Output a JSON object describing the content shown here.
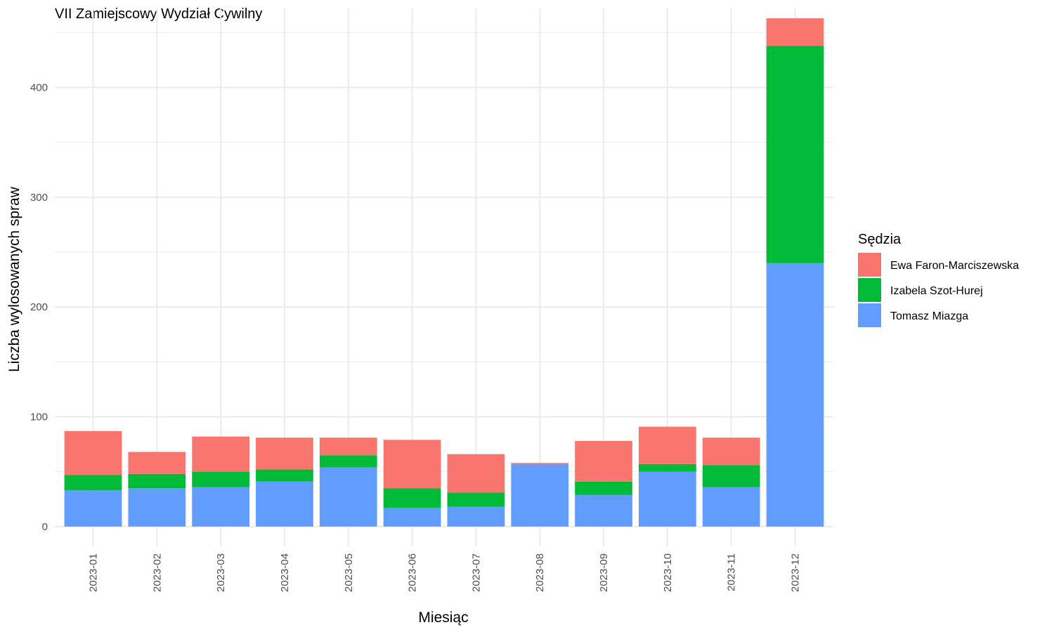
{
  "chart_data": {
    "type": "bar",
    "stacked": true,
    "title": "VII Zamiejscowy Wydział Cywilny",
    "xlabel": "Miesiąc",
    "ylabel": "Liczba wylosowanych spraw",
    "ylim": [
      -18,
      472
    ],
    "yticks": [
      0,
      100,
      200,
      300,
      400
    ],
    "categories": [
      "2023-01",
      "2023-02",
      "2023-03",
      "2023-04",
      "2023-05",
      "2023-06",
      "2023-07",
      "2023-08",
      "2023-09",
      "2023-10",
      "2023-11",
      "2023-12"
    ],
    "legend": {
      "title": "Sędzia",
      "position": "right"
    },
    "grid": true,
    "series": [
      {
        "name": "Tomasz Miazga",
        "color": "#619CFF",
        "values": [
          33,
          35,
          36,
          41,
          54,
          17,
          18,
          57,
          29,
          50,
          36,
          240
        ]
      },
      {
        "name": "Izabela Szot-Hurej",
        "color": "#00BA38",
        "values": [
          14,
          13,
          14,
          11,
          11,
          18,
          13,
          0,
          12,
          7,
          20,
          198
        ]
      },
      {
        "name": "Ewa Faron-Marciszewska",
        "color": "#F8766D",
        "values": [
          40,
          20,
          32,
          29,
          16,
          44,
          35,
          1,
          37,
          34,
          25,
          25
        ]
      }
    ],
    "legend_order": [
      "Ewa Faron-Marciszewska",
      "Izabela Szot-Hurej",
      "Tomasz Miazga"
    ]
  }
}
